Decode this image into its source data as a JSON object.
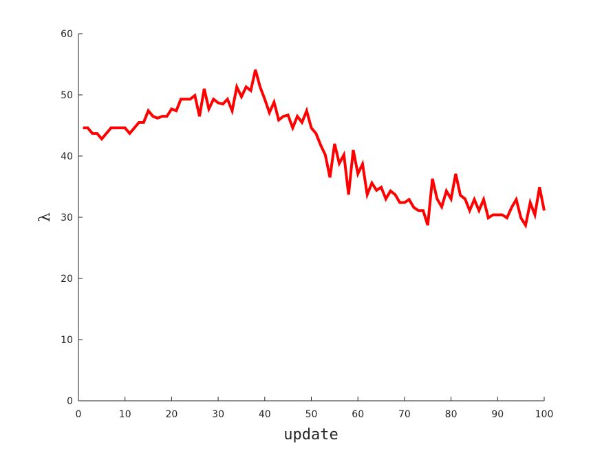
{
  "chart_data": {
    "type": "line",
    "title": "",
    "xlabel": "update",
    "ylabel": "λ",
    "xlim": [
      0,
      100
    ],
    "ylim": [
      0,
      60
    ],
    "xticks": [
      0,
      10,
      20,
      30,
      40,
      50,
      60,
      70,
      80,
      90,
      100
    ],
    "yticks": [
      0,
      10,
      20,
      30,
      40,
      50,
      60
    ],
    "grid": false,
    "legend": "none",
    "series": [
      {
        "color": "#ff0000",
        "x": [
          1,
          2,
          3,
          4,
          5,
          6,
          7,
          8,
          9,
          10,
          11,
          12,
          13,
          14,
          15,
          16,
          17,
          18,
          19,
          20,
          21,
          22,
          23,
          24,
          25,
          26,
          27,
          28,
          29,
          30,
          31,
          32,
          33,
          34,
          35,
          36,
          37,
          38,
          39,
          40,
          41,
          42,
          43,
          44,
          45,
          46,
          47,
          48,
          49,
          50,
          51,
          52,
          53,
          54,
          55,
          56,
          57,
          58,
          59,
          60,
          61,
          62,
          63,
          64,
          65,
          66,
          67,
          68,
          69,
          70,
          71,
          72,
          73,
          74,
          75,
          76,
          77,
          78,
          79,
          80,
          81,
          82,
          83,
          84,
          85,
          86,
          87,
          88,
          89,
          90,
          91,
          92,
          93,
          94,
          95,
          96,
          97,
          98,
          99,
          100
        ],
        "y": [
          44.6,
          44.6,
          43.7,
          43.7,
          42.8,
          43.7,
          44.6,
          44.6,
          44.6,
          44.6,
          43.7,
          44.6,
          45.5,
          45.5,
          47.4,
          46.5,
          46.2,
          46.5,
          46.5,
          47.7,
          47.4,
          49.3,
          49.3,
          49.3,
          49.9,
          46.5,
          51.0,
          47.7,
          49.3,
          48.7,
          48.5,
          49.3,
          47.4,
          51.3,
          49.7,
          51.3,
          50.7,
          54.1,
          51.3,
          49.3,
          47.1,
          48.8,
          45.9,
          46.5,
          46.7,
          44.6,
          46.5,
          45.5,
          47.4,
          44.6,
          43.7,
          41.8,
          40.2,
          36.5,
          42.0,
          38.8,
          40.2,
          33.7,
          41.0,
          37.1,
          38.7,
          33.7,
          35.6,
          34.4,
          34.9,
          33.0,
          34.3,
          33.7,
          32.4,
          32.4,
          32.9,
          31.6,
          31.1,
          31.1,
          28.7,
          36.3,
          33.0,
          31.7,
          34.3,
          33.0,
          37.1,
          33.6,
          33.0,
          31.1,
          32.9,
          31.1,
          32.9,
          29.9,
          30.4,
          30.4,
          30.4,
          29.9,
          31.6,
          32.9,
          29.9,
          28.7,
          32.4,
          30.4,
          34.9,
          31.1
        ]
      }
    ]
  }
}
